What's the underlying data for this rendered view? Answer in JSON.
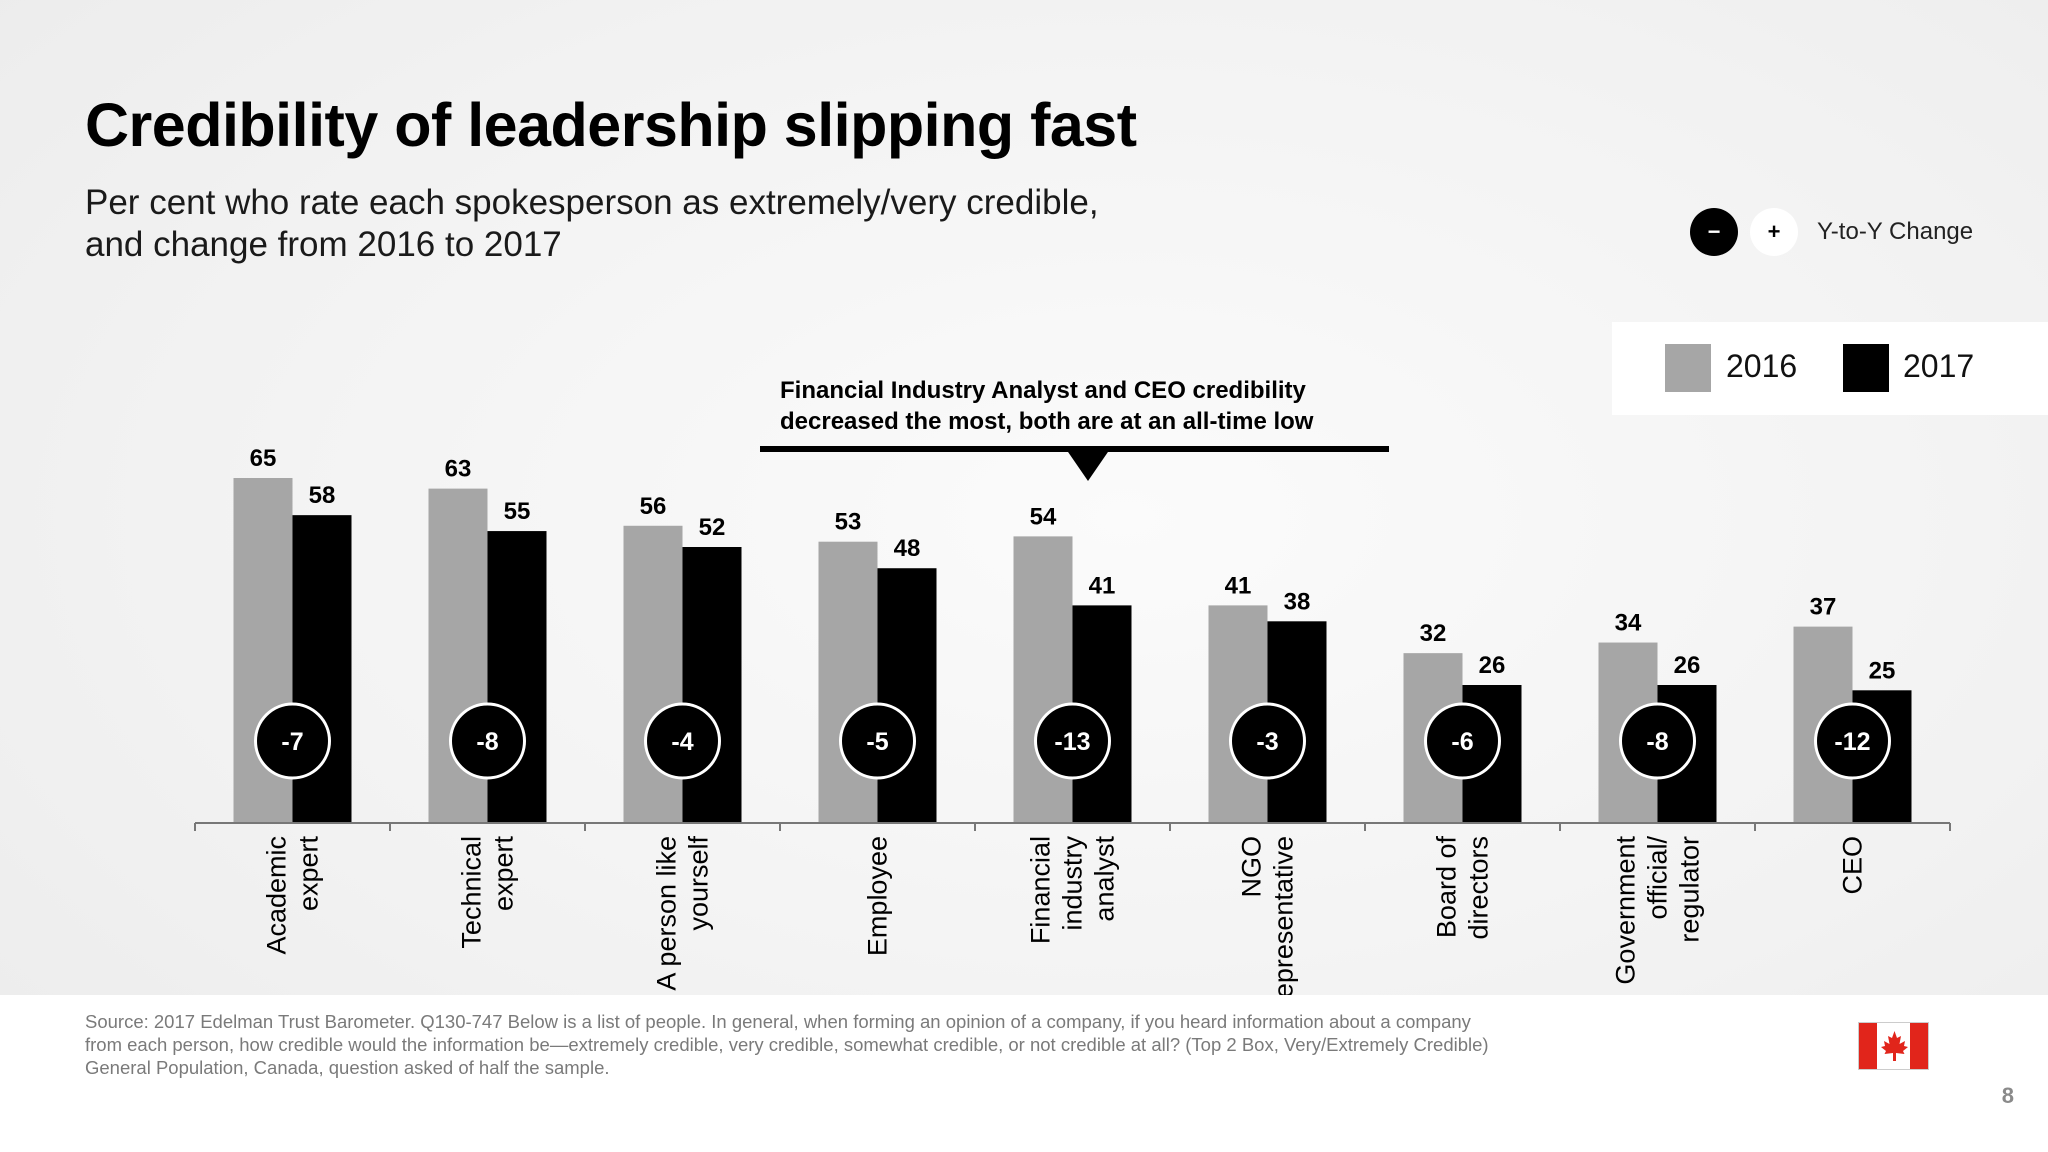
{
  "title": "Credibility of leadership slipping fast",
  "subtitle_line1": "Per cent who rate each spokesperson as extremely/very credible,",
  "subtitle_line2": "and change from 2016 to 2017",
  "yoy_legend": {
    "minus": "−",
    "plus": "+",
    "label": "Y-to-Y Change"
  },
  "annotation": {
    "line1": "Financial Industry Analyst and CEO credibility",
    "line2": "decreased the most, both are at an all-time low"
  },
  "footer": {
    "source": "Source: 2017 Edelman Trust Barometer. Q130-747 Below is a list of people. In general, when forming an opinion of a company, if you heard information about a company from each person, how credible would the information be—extremely credible, very credible, somewhat credible, or not credible at all? (Top 2 Box, Very/Extremely Credible) General Population, Canada, question asked of half the sample.",
    "page_number": "8"
  },
  "colors": {
    "s2016": "#a6a6a6",
    "s2017": "#000000",
    "axis": "#777777"
  },
  "chart_data": {
    "type": "bar",
    "categories": [
      [
        "Academic",
        "expert"
      ],
      [
        "Technical",
        "expert"
      ],
      [
        "A person like",
        "yourself"
      ],
      [
        "Employee"
      ],
      [
        "Financial",
        "industry",
        "analyst"
      ],
      [
        "NGO",
        "representative"
      ],
      [
        "Board of",
        "directors"
      ],
      [
        "Government",
        "official/",
        "regulator"
      ],
      [
        "CEO"
      ]
    ],
    "series": [
      {
        "name": "2016",
        "values": [
          65,
          63,
          56,
          53,
          54,
          41,
          32,
          34,
          37
        ]
      },
      {
        "name": "2017",
        "values": [
          58,
          55,
          52,
          48,
          41,
          38,
          26,
          26,
          25
        ]
      }
    ],
    "changes": [
      "-7",
      "-8",
      "-4",
      "-5",
      "-13",
      "-3",
      "-6",
      "-8",
      "-12"
    ],
    "ylim": [
      0,
      65
    ],
    "legend_position": "top-right",
    "grid": false
  }
}
